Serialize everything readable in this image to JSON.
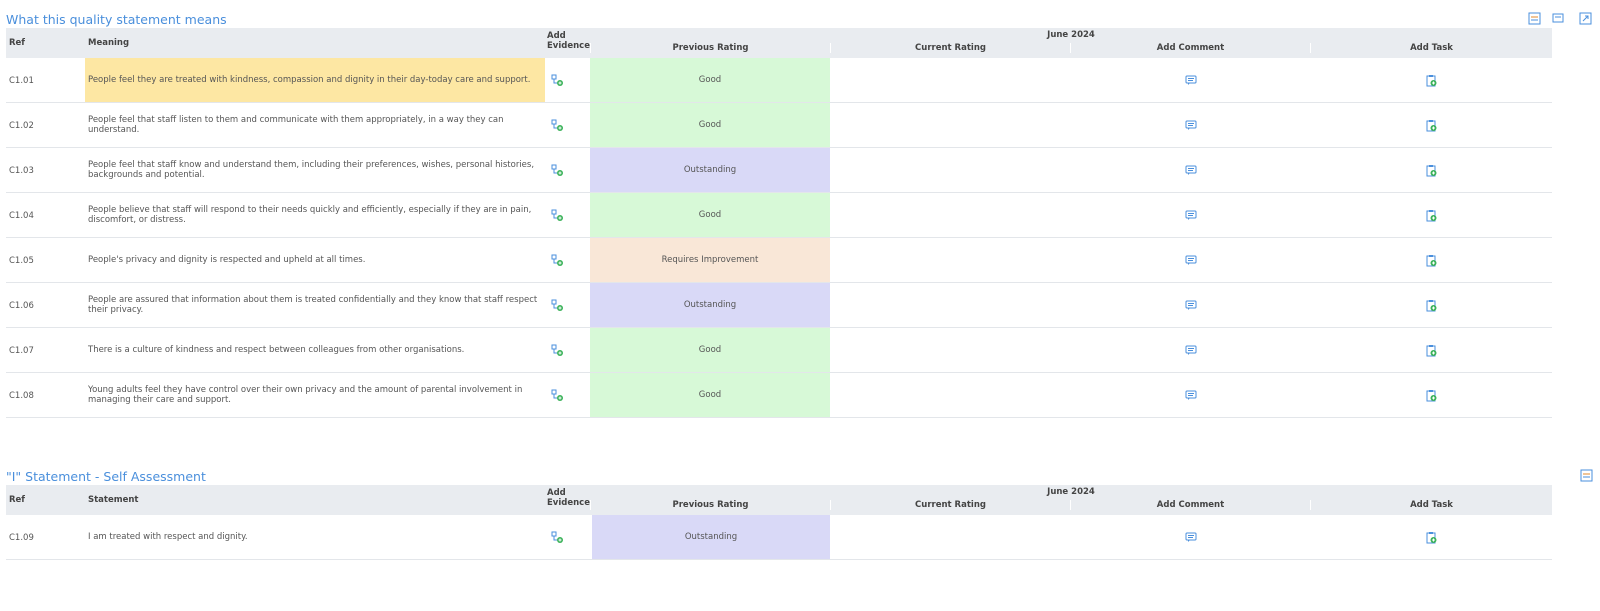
{
  "sections": [
    {
      "title": "What this quality statement means",
      "period": "June 2024",
      "headers": {
        "ref": "Ref",
        "text": "Meaning",
        "evidence": "Add Evidence",
        "previous": "Previous Rating",
        "current": "Current Rating",
        "comment": "Add Comment",
        "task": "Add Task"
      },
      "rows": [
        {
          "ref": "C1.01",
          "text": "People feel they are treated with kindness, compassion and dignity in their day-today care and support.",
          "previous": "Good",
          "rating_color": "#d7f9d7",
          "text_color": "#fde7a3"
        },
        {
          "ref": "C1.02",
          "text": "People feel that staff listen to them and communicate with them appropriately, in a way they can understand.",
          "previous": "Good",
          "rating_color": "#d7f9d7"
        },
        {
          "ref": "C1.03",
          "text": "People feel that staff know and understand them, including their preferences, wishes, personal histories, backgrounds and potential.",
          "previous": "Outstanding",
          "rating_color": "#d9d9f7"
        },
        {
          "ref": "C1.04",
          "text": "People believe that staff will respond to their needs quickly and efficiently, especially if they are in pain, discomfort, or distress.",
          "previous": "Good",
          "rating_color": "#d7f9d7"
        },
        {
          "ref": "C1.05",
          "text": "People's privacy and dignity is respected and upheld at all times.",
          "previous": "Requires Improvement",
          "rating_color": "#f9e7d7"
        },
        {
          "ref": "C1.06",
          "text": "People are assured that information about them is treated confidentially and they know that staff respect their privacy.",
          "previous": "Outstanding",
          "rating_color": "#d9d9f7"
        },
        {
          "ref": "C1.07",
          "text": "There is a culture of kindness and respect between colleagues from other organisations.",
          "previous": "Good",
          "rating_color": "#d7f9d7"
        },
        {
          "ref": "C1.08",
          "text": "Young adults feel they have control over their own privacy and the amount of parental involvement in managing their care and support.",
          "previous": "Good",
          "rating_color": "#d7f9d7"
        }
      ]
    },
    {
      "title": "\"I\" Statement - Self Assessment",
      "period": "June 2024",
      "headers": {
        "ref": "Ref",
        "text": "Statement",
        "evidence": "Add Evidence",
        "previous": "Previous Rating",
        "current": "Current Rating",
        "comment": "Add Comment",
        "task": "Add Task"
      },
      "rows": [
        {
          "ref": "C1.09",
          "text": "I am treated with respect and dignity.",
          "previous": "Outstanding",
          "rating_color": "#d9d9f7"
        }
      ]
    }
  ]
}
